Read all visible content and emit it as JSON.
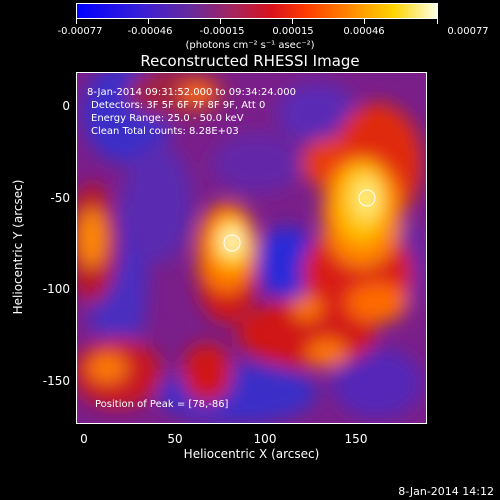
{
  "colorbar": {
    "ticks": [
      "-0.00077",
      "-0.00046",
      "-0.00015",
      "0.00015",
      "0.00046",
      "0.00077"
    ],
    "units": "(photons cm⁻² s⁻¹ asec⁻²)"
  },
  "title": "Reconstructed RHESSI Image",
  "annotations": {
    "time_range": "8-Jan-2014 09:31:52.000 to 09:34:24.000",
    "detectors": "Detectors: 3F 5F 6F 7F 8F 9F, Att 0",
    "energy": "Energy Range: 25.0 - 50.0 keV",
    "clean": "Clean     Total counts: 8.28E+03",
    "peak": "Position of Peak = [78,-86]"
  },
  "axes": {
    "xlabel": "Heliocentric X (arcsec)",
    "ylabel": "Heliocentric Y (arcsec)",
    "xticks": [
      "0",
      "50",
      "100",
      "150"
    ],
    "yticks": [
      "0",
      "-50",
      "-100",
      "-150"
    ]
  },
  "footer_date": "8-Jan-2014 14:12"
}
